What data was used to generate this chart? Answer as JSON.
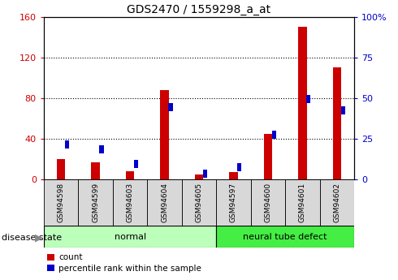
{
  "title": "GDS2470 / 1559298_a_at",
  "samples": [
    "GSM94598",
    "GSM94599",
    "GSM94603",
    "GSM94604",
    "GSM94605",
    "GSM94597",
    "GSM94600",
    "GSM94601",
    "GSM94602"
  ],
  "count_values": [
    20,
    17,
    8,
    88,
    5,
    7,
    45,
    150,
    110
  ],
  "percentile_values": [
    24,
    21,
    12,
    47,
    6,
    10,
    30,
    52,
    45
  ],
  "groups": [
    {
      "label": "normal",
      "start": 0,
      "end": 5,
      "color": "#bbffbb"
    },
    {
      "label": "neural tube defect",
      "start": 5,
      "end": 9,
      "color": "#44ee44"
    }
  ],
  "ylim_left": [
    0,
    160
  ],
  "ylim_right": [
    0,
    100
  ],
  "yticks_left": [
    0,
    40,
    80,
    120,
    160
  ],
  "yticks_right": [
    0,
    25,
    50,
    75,
    100
  ],
  "ytick_labels_left": [
    "0",
    "40",
    "80",
    "120",
    "160"
  ],
  "ytick_labels_right": [
    "0",
    "25",
    "50",
    "75",
    "100%"
  ],
  "left_axis_color": "#cc0000",
  "right_axis_color": "#0000cc",
  "bar_color": "#cc0000",
  "marker_color": "#0000cc",
  "marker_size": 5,
  "bar_width": 0.25,
  "legend_count_color": "#cc0000",
  "legend_pct_color": "#0000cc"
}
